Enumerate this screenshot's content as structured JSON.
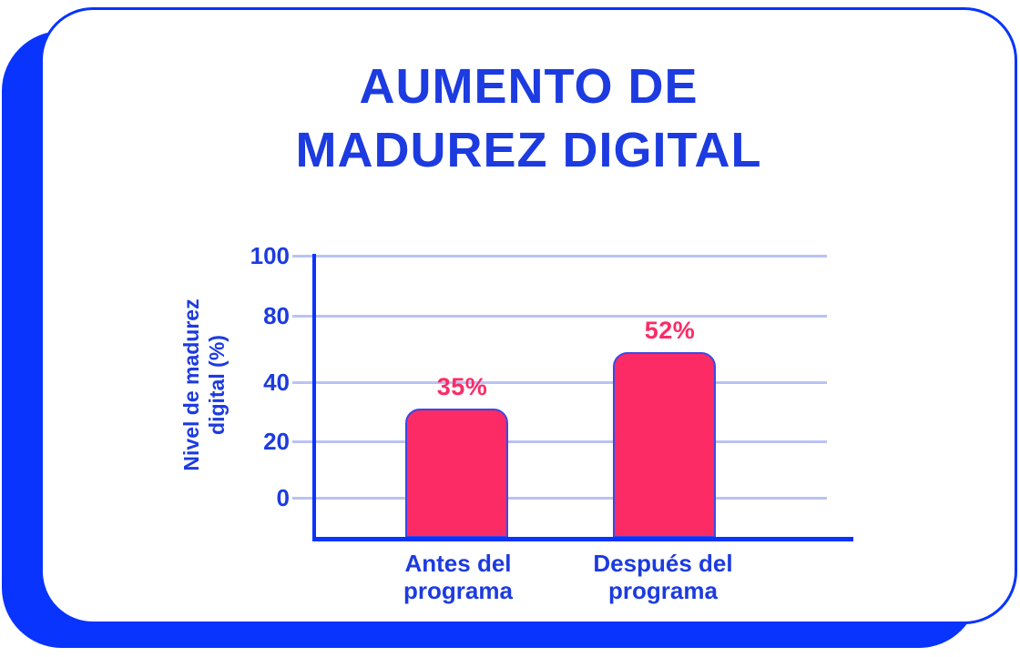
{
  "header": {
    "title": "AUMENTO DE MADUREZ DIGITAL",
    "title_lines": [
      "AUMENTO DE",
      "MADUREZ DIGITAL"
    ]
  },
  "colors": {
    "blue": "#0834FE",
    "text_blue": "#1C3BE0",
    "pink": "#FC2B66",
    "bar_outline": "#3A49E8",
    "gridline": "#B9C3F2",
    "card_background": "#FFFFFF"
  },
  "chart_data": {
    "type": "bar",
    "title": "AUMENTO DE MADUREZ DIGITAL",
    "categories": [
      "Antes del programa",
      "Después del programa"
    ],
    "categories_lines": [
      [
        "Antes del",
        "programa"
      ],
      [
        "Después del",
        "programa"
      ]
    ],
    "values": [
      35,
      52
    ],
    "value_labels": [
      "35%",
      "52%"
    ],
    "xlabel": "",
    "ylabel": "Nivel de madurez digital (%)",
    "ylabel_lines": [
      "Nivel de madurez",
      "digital (%)"
    ],
    "ytick_labels": [
      "100",
      "80",
      "40",
      "20",
      "0"
    ],
    "ylim": [
      0,
      100
    ],
    "grid": true,
    "legend": false,
    "bar_color": "#FC2B66",
    "value_label_color": "#FC2B66"
  }
}
